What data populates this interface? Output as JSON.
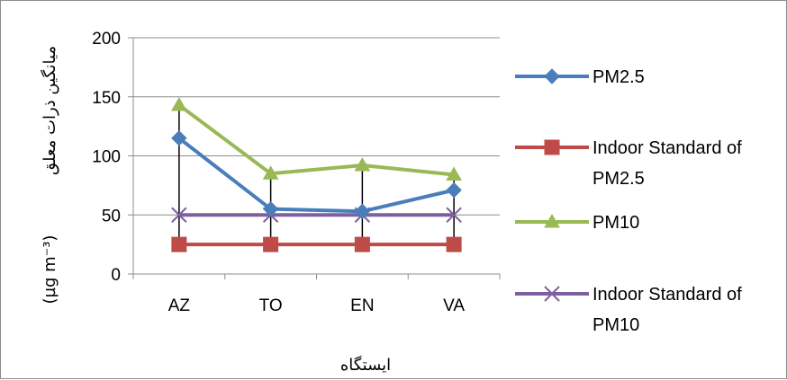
{
  "chart_data": {
    "type": "line",
    "categories": [
      "AZ",
      "TO",
      "EN",
      "VA"
    ],
    "series": [
      {
        "name": "PM2.5",
        "values": [
          115,
          55,
          53,
          71
        ],
        "color": "#4a7ebb",
        "marker": "diamond"
      },
      {
        "name": "Indoor Standard of PM2.5",
        "values": [
          25,
          25,
          25,
          25
        ],
        "color": "#be4b48",
        "marker": "square"
      },
      {
        "name": "PM10",
        "values": [
          143,
          85,
          92,
          84
        ],
        "color": "#98b954",
        "marker": "triangle"
      },
      {
        "name": "Indoor Standard of PM10",
        "values": [
          50,
          50,
          50,
          50
        ],
        "color": "#7d60a0",
        "marker": "x"
      }
    ],
    "ylim": [
      0,
      200
    ],
    "yticks": [
      0,
      50,
      100,
      150,
      200
    ],
    "grid": true,
    "high_low_lines": true,
    "xlabel": "ایستگاه",
    "ylabel": "میانگین ذرات معلق",
    "ylabel_unit": "(µg m⁻³)",
    "legend_position": "right",
    "legend": [
      [
        "PM2.5"
      ],
      [
        "Indoor Standard of",
        "PM2.5"
      ],
      [
        "PM10"
      ],
      [
        "Indoor Standard of",
        "PM10"
      ]
    ]
  }
}
